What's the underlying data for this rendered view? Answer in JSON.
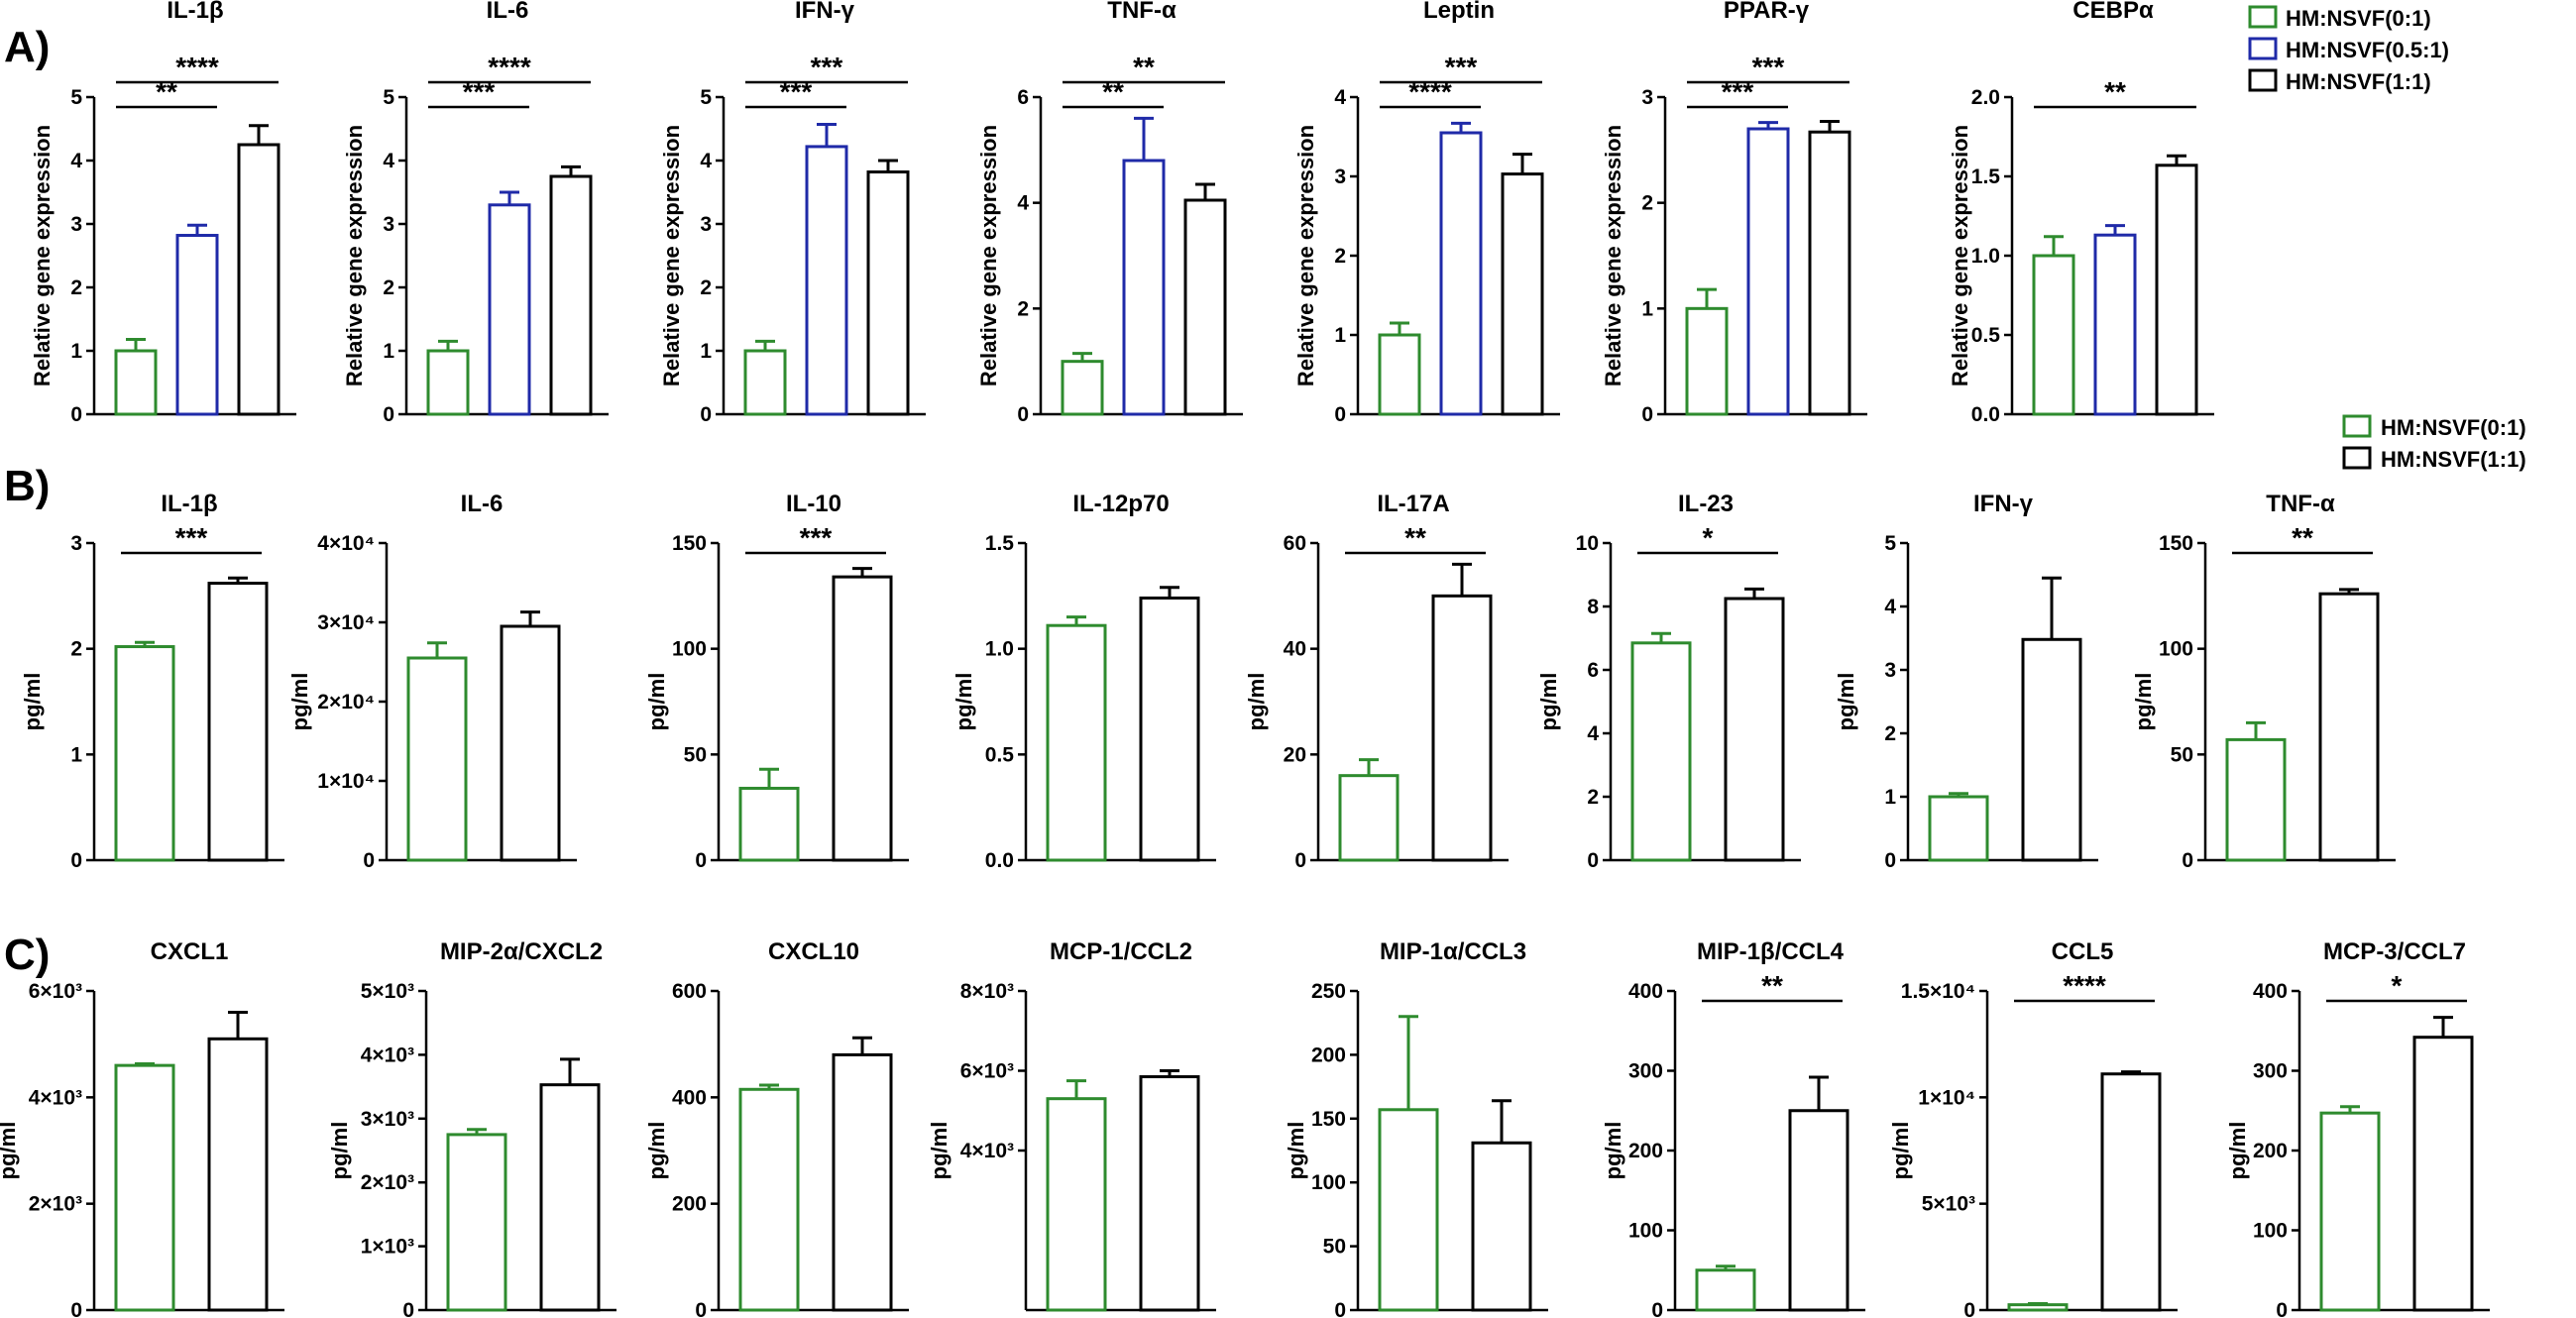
{
  "colors": {
    "green": "#2e8b2e",
    "blue": "#1f2aa8",
    "black": "#000000"
  },
  "panels": {
    "A": "A)",
    "B": "B)",
    "C": "C)"
  },
  "legend_A": [
    "HM:NSVF(0:1)",
    "HM:NSVF(0.5:1)",
    "HM:NSVF(1:1)"
  ],
  "legend_B": [
    "HM:NSVF(0:1)",
    "HM:NSVF(1:1)"
  ],
  "chart_data": [
    {
      "type": "bar",
      "panel": "A",
      "title": "IL-1β",
      "ylabel": "Relative gene expression",
      "ylim": [
        0,
        5
      ],
      "ticks": [
        "0",
        "1",
        "2",
        "3",
        "4",
        "5"
      ],
      "tickvals": [
        0,
        1,
        2,
        3,
        4,
        5
      ],
      "categories": [
        "HM:NSVF(0:1)",
        "HM:NSVF(0.5:1)",
        "HM:NSVF(1:1)"
      ],
      "values": [
        1.0,
        2.82,
        4.25
      ],
      "errors": [
        0.18,
        0.16,
        0.3
      ],
      "significance": [
        {
          "from": 0,
          "to": 1,
          "label": "**"
        },
        {
          "from": 0,
          "to": 2,
          "label": "****"
        }
      ]
    },
    {
      "type": "bar",
      "panel": "A",
      "title": "IL-6",
      "ylabel": "Relative gene expression",
      "ylim": [
        0,
        5
      ],
      "ticks": [
        "0",
        "1",
        "2",
        "3",
        "4",
        "5"
      ],
      "tickvals": [
        0,
        1,
        2,
        3,
        4,
        5
      ],
      "categories": [
        "HM:NSVF(0:1)",
        "HM:NSVF(0.5:1)",
        "HM:NSVF(1:1)"
      ],
      "values": [
        1.0,
        3.3,
        3.75
      ],
      "errors": [
        0.15,
        0.2,
        0.15
      ],
      "significance": [
        {
          "from": 0,
          "to": 1,
          "label": "***"
        },
        {
          "from": 0,
          "to": 2,
          "label": "****"
        }
      ]
    },
    {
      "type": "bar",
      "panel": "A",
      "title": "IFN-γ",
      "ylabel": "Relative gene expression",
      "ylim": [
        0,
        5
      ],
      "ticks": [
        "0",
        "1",
        "2",
        "3",
        "4",
        "5"
      ],
      "tickvals": [
        0,
        1,
        2,
        3,
        4,
        5
      ],
      "categories": [
        "HM:NSVF(0:1)",
        "HM:NSVF(0.5:1)",
        "HM:NSVF(1:1)"
      ],
      "values": [
        1.0,
        4.22,
        3.82
      ],
      "errors": [
        0.15,
        0.35,
        0.18
      ],
      "significance": [
        {
          "from": 0,
          "to": 1,
          "label": "***"
        },
        {
          "from": 0,
          "to": 2,
          "label": "***"
        }
      ]
    },
    {
      "type": "bar",
      "panel": "A",
      "title": "TNF-α",
      "ylabel": "Relative gene expression",
      "ylim": [
        0,
        6
      ],
      "ticks": [
        "0",
        "2",
        "4",
        "6"
      ],
      "tickvals": [
        0,
        2,
        4,
        6
      ],
      "categories": [
        "HM:NSVF(0:1)",
        "HM:NSVF(0.5:1)",
        "HM:NSVF(1:1)"
      ],
      "values": [
        1.0,
        4.8,
        4.05
      ],
      "errors": [
        0.15,
        0.8,
        0.3
      ],
      "significance": [
        {
          "from": 0,
          "to": 1,
          "label": "**"
        },
        {
          "from": 0,
          "to": 2,
          "label": "**"
        }
      ]
    },
    {
      "type": "bar",
      "panel": "A",
      "title": "Leptin",
      "ylabel": "Relative gene expression",
      "ylim": [
        0,
        4
      ],
      "ticks": [
        "0",
        "1",
        "2",
        "3",
        "4"
      ],
      "tickvals": [
        0,
        1,
        2,
        3,
        4
      ],
      "categories": [
        "HM:NSVF(0:1)",
        "HM:NSVF(0.5:1)",
        "HM:NSVF(1:1)"
      ],
      "values": [
        1.0,
        3.55,
        3.03
      ],
      "errors": [
        0.15,
        0.12,
        0.25
      ],
      "significance": [
        {
          "from": 0,
          "to": 1,
          "label": "****"
        },
        {
          "from": 0,
          "to": 2,
          "label": "***"
        }
      ]
    },
    {
      "type": "bar",
      "panel": "A",
      "title": "PPAR-γ",
      "ylabel": "Relative gene expression",
      "ylim": [
        0,
        3
      ],
      "ticks": [
        "0",
        "1",
        "2",
        "3"
      ],
      "tickvals": [
        0,
        1,
        2,
        3
      ],
      "categories": [
        "HM:NSVF(0:1)",
        "HM:NSVF(0.5:1)",
        "HM:NSVF(1:1)"
      ],
      "values": [
        1.0,
        2.7,
        2.67
      ],
      "errors": [
        0.18,
        0.06,
        0.1
      ],
      "significance": [
        {
          "from": 0,
          "to": 1,
          "label": "***"
        },
        {
          "from": 0,
          "to": 2,
          "label": "***"
        }
      ]
    },
    {
      "type": "bar",
      "panel": "A",
      "title": "CEBPα",
      "ylabel": "Relative gene expression",
      "ylim": [
        0,
        2
      ],
      "ticks": [
        "0.0",
        "0.5",
        "1.0",
        "1.5",
        "2.0"
      ],
      "tickvals": [
        0,
        0.5,
        1,
        1.5,
        2
      ],
      "categories": [
        "HM:NSVF(0:1)",
        "HM:NSVF(0.5:1)",
        "HM:NSVF(1:1)"
      ],
      "values": [
        1.0,
        1.13,
        1.57
      ],
      "errors": [
        0.12,
        0.06,
        0.06
      ],
      "significance": [
        {
          "from": 0,
          "to": 2,
          "label": "**"
        }
      ]
    },
    {
      "type": "bar",
      "panel": "B",
      "title": "IL-1β",
      "ylabel": "pg/ml",
      "ylim": [
        0,
        3
      ],
      "ticks": [
        "0",
        "1",
        "2",
        "3"
      ],
      "tickvals": [
        0,
        1,
        2,
        3
      ],
      "categories": [
        "HM:NSVF(0:1)",
        "HM:NSVF(1:1)"
      ],
      "values": [
        2.02,
        2.62
      ],
      "errors": [
        0.04,
        0.05
      ],
      "significance": [
        {
          "from": 0,
          "to": 1,
          "label": "***"
        }
      ]
    },
    {
      "type": "bar",
      "panel": "B",
      "title": "IL-6",
      "ylabel": "pg/ml",
      "ylim": [
        0,
        40000
      ],
      "ticks": [
        "0",
        "1×10⁴",
        "2×10⁴",
        "3×10⁴",
        "4×10⁴"
      ],
      "tickvals": [
        0,
        10000,
        20000,
        30000,
        40000
      ],
      "categories": [
        "HM:NSVF(0:1)",
        "HM:NSVF(1:1)"
      ],
      "values": [
        25500,
        29500
      ],
      "errors": [
        1900,
        1800
      ],
      "significance": []
    },
    {
      "type": "bar",
      "panel": "B",
      "title": "IL-10",
      "ylabel": "pg/ml",
      "ylim": [
        0,
        150
      ],
      "ticks": [
        "0",
        "50",
        "100",
        "150"
      ],
      "tickvals": [
        0,
        50,
        100,
        150
      ],
      "categories": [
        "HM:NSVF(0:1)",
        "HM:NSVF(1:1)"
      ],
      "values": [
        34,
        134
      ],
      "errors": [
        9,
        4
      ],
      "significance": [
        {
          "from": 0,
          "to": 1,
          "label": "***"
        }
      ]
    },
    {
      "type": "bar",
      "panel": "B",
      "title": "IL-12p70",
      "ylabel": "pg/ml",
      "ylim": [
        0,
        1.5
      ],
      "ticks": [
        "0.0",
        "0.5",
        "1.0",
        "1.5"
      ],
      "tickvals": [
        0,
        0.5,
        1,
        1.5
      ],
      "categories": [
        "HM:NSVF(0:1)",
        "HM:NSVF(1:1)"
      ],
      "values": [
        1.11,
        1.24
      ],
      "errors": [
        0.04,
        0.05
      ],
      "significance": []
    },
    {
      "type": "bar",
      "panel": "B",
      "title": "IL-17A",
      "ylabel": "pg/ml",
      "ylim": [
        0,
        60
      ],
      "ticks": [
        "0",
        "20",
        "40",
        "60"
      ],
      "tickvals": [
        0,
        20,
        40,
        60
      ],
      "categories": [
        "HM:NSVF(0:1)",
        "HM:NSVF(1:1)"
      ],
      "values": [
        16,
        50
      ],
      "errors": [
        3,
        6
      ],
      "significance": [
        {
          "from": 0,
          "to": 1,
          "label": "**"
        }
      ]
    },
    {
      "type": "bar",
      "panel": "B",
      "title": "IL-23",
      "ylabel": "pg/ml",
      "ylim": [
        0,
        10
      ],
      "ticks": [
        "0",
        "2",
        "4",
        "6",
        "8",
        "10"
      ],
      "tickvals": [
        0,
        2,
        4,
        6,
        8,
        10
      ],
      "categories": [
        "HM:NSVF(0:1)",
        "HM:NSVF(1:1)"
      ],
      "values": [
        6.85,
        8.25
      ],
      "errors": [
        0.3,
        0.3
      ],
      "significance": [
        {
          "from": 0,
          "to": 1,
          "label": "*"
        }
      ]
    },
    {
      "type": "bar",
      "panel": "B",
      "title": "IFN-γ",
      "ylabel": "pg/ml",
      "ylim": [
        0,
        5
      ],
      "ticks": [
        "0",
        "1",
        "2",
        "3",
        "4",
        "5"
      ],
      "tickvals": [
        0,
        1,
        2,
        3,
        4,
        5
      ],
      "categories": [
        "HM:NSVF(0:1)",
        "HM:NSVF(1:1)"
      ],
      "values": [
        1.0,
        3.48
      ],
      "errors": [
        0.05,
        0.97
      ],
      "significance": []
    },
    {
      "type": "bar",
      "panel": "B",
      "title": "TNF-α",
      "ylabel": "pg/ml",
      "ylim": [
        0,
        150
      ],
      "ticks": [
        "0",
        "50",
        "100",
        "150"
      ],
      "tickvals": [
        0,
        50,
        100,
        150
      ],
      "categories": [
        "HM:NSVF(0:1)",
        "HM:NSVF(1:1)"
      ],
      "values": [
        57,
        126
      ],
      "errors": [
        8,
        2
      ],
      "significance": [
        {
          "from": 0,
          "to": 1,
          "label": "**"
        }
      ]
    },
    {
      "type": "bar",
      "panel": "C",
      "title": "CXCL1",
      "ylabel": "pg/ml",
      "ylim": [
        0,
        6000
      ],
      "ticks": [
        "0",
        "2×10³",
        "4×10³",
        "6×10³"
      ],
      "tickvals": [
        0,
        2000,
        4000,
        6000
      ],
      "categories": [
        "HM:NSVF(0:1)",
        "HM:NSVF(1:1)"
      ],
      "values": [
        4600,
        5100
      ],
      "errors": [
        30,
        500
      ],
      "significance": []
    },
    {
      "type": "bar",
      "panel": "C",
      "title": "MIP-2α/CXCL2",
      "ylabel": "pg/ml",
      "ylim": [
        0,
        5000
      ],
      "ticks": [
        "0",
        "1×10³",
        "2×10³",
        "3×10³",
        "4×10³",
        "5×10³"
      ],
      "tickvals": [
        0,
        1000,
        2000,
        3000,
        4000,
        5000
      ],
      "categories": [
        "HM:NSVF(0:1)",
        "HM:NSVF(1:1)"
      ],
      "values": [
        2750,
        3530
      ],
      "errors": [
        80,
        400
      ],
      "significance": []
    },
    {
      "type": "bar",
      "panel": "C",
      "title": "CXCL10",
      "ylabel": "pg/ml",
      "ylim": [
        0,
        600
      ],
      "ticks": [
        "0",
        "200",
        "400",
        "600"
      ],
      "tickvals": [
        0,
        200,
        400,
        600
      ],
      "categories": [
        "HM:NSVF(0:1)",
        "HM:NSVF(1:1)"
      ],
      "values": [
        415,
        480
      ],
      "errors": [
        8,
        32
      ],
      "significance": []
    },
    {
      "type": "bar",
      "panel": "C",
      "title": "MCP-1/CCL2",
      "ylabel": "pg/ml",
      "ylim": [
        0,
        8000
      ],
      "ticks": [
        "4×10³",
        "6×10³",
        "8×10³"
      ],
      "tickvals": [
        4000,
        6000,
        8000
      ],
      "categories": [
        "HM:NSVF(0:1)",
        "HM:NSVF(1:1)"
      ],
      "values": [
        5300,
        5850
      ],
      "errors": [
        450,
        150
      ],
      "significance": []
    },
    {
      "type": "bar",
      "panel": "C",
      "title": "MIP-1α/CCL3",
      "ylabel": "pg/ml",
      "ylim": [
        0,
        250
      ],
      "ticks": [
        "0",
        "50",
        "100",
        "150",
        "200",
        "250"
      ],
      "tickvals": [
        0,
        50,
        100,
        150,
        200,
        250
      ],
      "categories": [
        "HM:NSVF(0:1)",
        "HM:NSVF(1:1)"
      ],
      "values": [
        157,
        131
      ],
      "errors": [
        73,
        33
      ],
      "significance": []
    },
    {
      "type": "bar",
      "panel": "C",
      "title": "MIP-1β/CCL4",
      "ylabel": "pg/ml",
      "ylim": [
        0,
        400
      ],
      "ticks": [
        "0",
        "100",
        "200",
        "300",
        "400"
      ],
      "tickvals": [
        0,
        100,
        200,
        300,
        400
      ],
      "categories": [
        "HM:NSVF(0:1)",
        "HM:NSVF(1:1)"
      ],
      "values": [
        50,
        250
      ],
      "errors": [
        5,
        42
      ],
      "significance": [
        {
          "from": 0,
          "to": 1,
          "label": "**"
        }
      ]
    },
    {
      "type": "bar",
      "panel": "C",
      "title": "CCL5",
      "ylabel": "pg/ml",
      "ylim": [
        0,
        15000
      ],
      "ticks": [
        "0",
        "5×10³",
        "1×10⁴",
        "1.5×10⁴"
      ],
      "tickvals": [
        0,
        5000,
        10000,
        15000
      ],
      "categories": [
        "HM:NSVF(0:1)",
        "HM:NSVF(1:1)"
      ],
      "values": [
        250,
        11100
      ],
      "errors": [
        50,
        100
      ],
      "significance": [
        {
          "from": 0,
          "to": 1,
          "label": "****"
        }
      ]
    },
    {
      "type": "bar",
      "panel": "C",
      "title": "MCP-3/CCL7",
      "ylabel": "pg/ml",
      "ylim": [
        0,
        400
      ],
      "ticks": [
        "0",
        "100",
        "200",
        "300",
        "400"
      ],
      "tickvals": [
        0,
        100,
        200,
        300,
        400
      ],
      "categories": [
        "HM:NSVF(0:1)",
        "HM:NSVF(1:1)"
      ],
      "values": [
        247,
        342
      ],
      "errors": [
        8,
        25
      ],
      "significance": [
        {
          "from": 0,
          "to": 1,
          "label": "*"
        }
      ]
    }
  ]
}
